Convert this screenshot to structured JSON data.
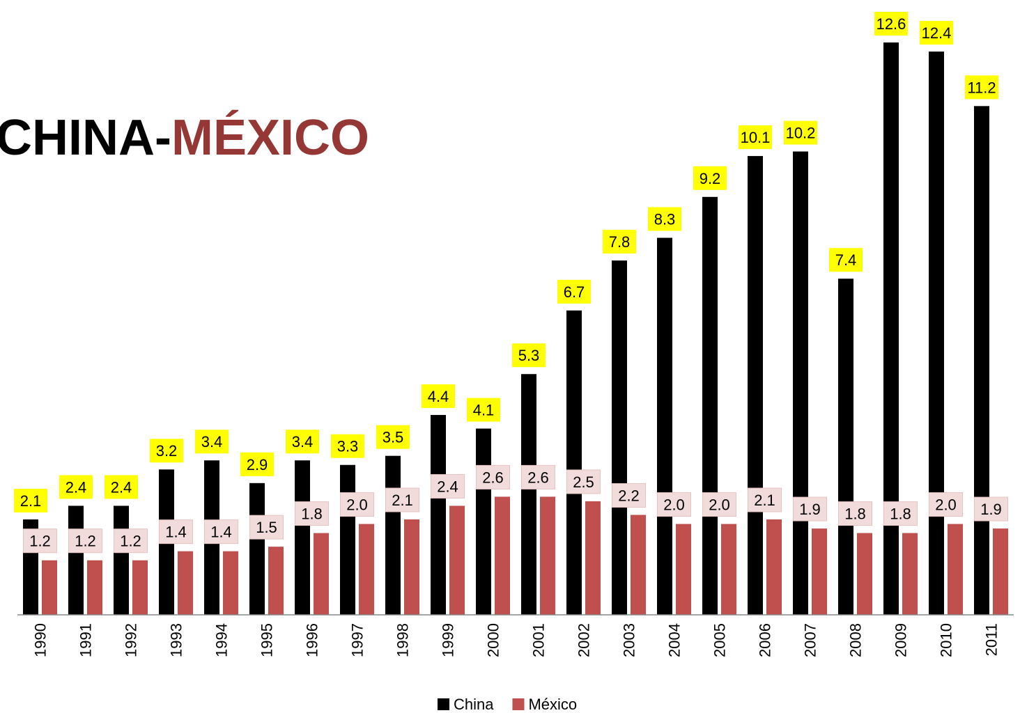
{
  "chart_data": {
    "type": "bar",
    "title": [
      "CHINA-",
      "MÉXICO"
    ],
    "categories": [
      "1990",
      "1991",
      "1992",
      "1993",
      "1994",
      "1995",
      "1996",
      "1997",
      "1998",
      "1999",
      "2000",
      "2001",
      "2002",
      "2003",
      "2004",
      "2005",
      "2006",
      "2007",
      "2008",
      "2009",
      "2010",
      "2011"
    ],
    "series": [
      {
        "name": "China",
        "color": "#000000",
        "label_color": "#ffff00",
        "values": [
          2.1,
          2.4,
          2.4,
          3.2,
          3.4,
          2.9,
          3.4,
          3.3,
          3.5,
          4.4,
          4.1,
          5.3,
          6.7,
          7.8,
          8.3,
          9.2,
          10.1,
          10.2,
          7.4,
          12.6,
          12.4,
          11.2
        ],
        "value_labels": [
          "2.1",
          "2.4",
          "2.4",
          "3.2",
          "3.4",
          "2.9",
          "3.4",
          "3.3",
          "3.5",
          "4.4",
          "4.1",
          "5.3",
          "6.7",
          "7.8",
          "8.3",
          "9.2",
          "10.1",
          "10.2",
          "7.4",
          "12.6",
          "12.4",
          "11.2"
        ]
      },
      {
        "name": "México",
        "color": "#c0504d",
        "label_color": "#f2dcdb",
        "values": [
          1.2,
          1.2,
          1.2,
          1.4,
          1.4,
          1.5,
          1.8,
          2,
          2.1,
          2.4,
          2.6,
          2.6,
          2.5,
          2.2,
          2,
          2,
          2.1,
          1.9,
          1.8,
          1.8,
          2,
          1.9
        ],
        "value_labels": [
          "1.2",
          "1.2",
          "1.2",
          "1.4",
          "1.4",
          "1.5",
          "1.8",
          "2.0",
          "2.1",
          "2.4",
          "2.6",
          "2.6",
          "2.5",
          "2.2",
          "2.0",
          "2.0",
          "2.1",
          "1.9",
          "1.8",
          "1.8",
          "2.0",
          "1.9"
        ]
      }
    ],
    "ylim": [
      0,
      12.6
    ],
    "legend": "bottom"
  }
}
